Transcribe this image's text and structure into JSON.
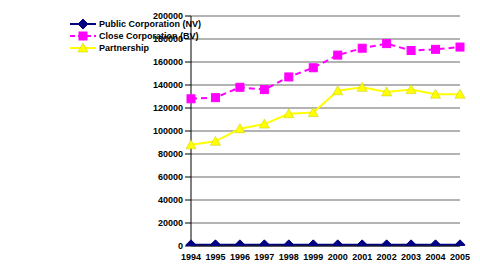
{
  "chart_data": {
    "type": "line",
    "categories": [
      "1994",
      "1995",
      "1996",
      "1997",
      "1998",
      "1999",
      "2000",
      "2001",
      "2002",
      "2003",
      "2004",
      "2005"
    ],
    "series": [
      {
        "name": "Public Corporation (NV)",
        "color": "#000080",
        "marker": "diamond",
        "line_style": "solid",
        "values": [
          1000,
          1000,
          1000,
          1000,
          1000,
          1000,
          1000,
          1000,
          1000,
          1000,
          1000,
          1000
        ]
      },
      {
        "name": "Close Corporation (BV)",
        "color": "#ff00ff",
        "marker": "square",
        "line_style": "dashed",
        "values": [
          128000,
          129000,
          138000,
          136000,
          147000,
          155000,
          166000,
          172000,
          176000,
          170000,
          171000,
          173000
        ]
      },
      {
        "name": "Partnership",
        "color": "#ffff00",
        "marker": "triangle",
        "line_style": "solid",
        "values": [
          88000,
          91000,
          102000,
          106000,
          115000,
          116000,
          135000,
          138000,
          134000,
          136000,
          132000,
          132000
        ]
      }
    ],
    "ylim": [
      0,
      200000
    ],
    "yticks": [
      0,
      20000,
      40000,
      60000,
      80000,
      100000,
      120000,
      140000,
      160000,
      180000,
      200000
    ],
    "grid": true,
    "legend": "upper left"
  }
}
